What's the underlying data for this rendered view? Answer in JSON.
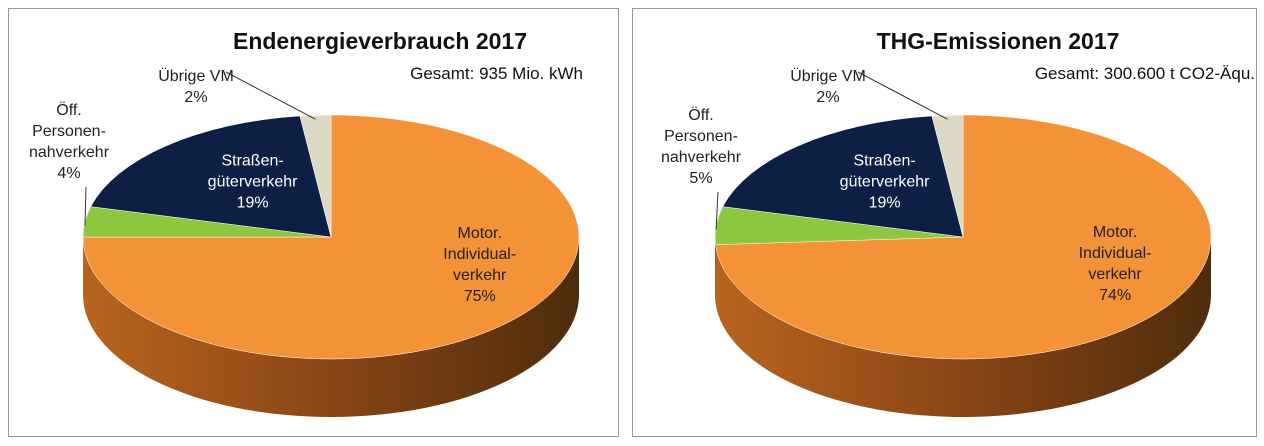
{
  "chart_data": [
    {
      "type": "pie",
      "title": "Endenergieverbrauch 2017",
      "subtitle": "Gesamt: 935 Mio. kWh",
      "categories": [
        "Motor.\nIndividual-\nverkehr",
        "Öff.\nPersonen-\nnahverkehr",
        "Straßen-\ngüterverkehr",
        "Übrige VM"
      ],
      "values": [
        75,
        4,
        19,
        2
      ],
      "value_labels": [
        "75%",
        "4%",
        "19%",
        "2%"
      ],
      "colors": [
        "#f39237",
        "#8dc63f",
        "#0d1f45",
        "#ddd9c4"
      ]
    },
    {
      "type": "pie",
      "title": "THG-Emissionen 2017",
      "subtitle": "Gesamt: 300.600 t CO2-Äqu.",
      "categories": [
        "Motor.\nIndividual-\nverkehr",
        "Öff.\nPersonen-\nnahverkehr",
        "Straßen-\ngüterverkehr",
        "Übrige VM"
      ],
      "values": [
        74,
        5,
        19,
        2
      ],
      "value_labels": [
        "74%",
        "5%",
        "19%",
        "2%"
      ],
      "colors": [
        "#f39237",
        "#8dc63f",
        "#0d1f45",
        "#ddd9c4"
      ]
    }
  ]
}
